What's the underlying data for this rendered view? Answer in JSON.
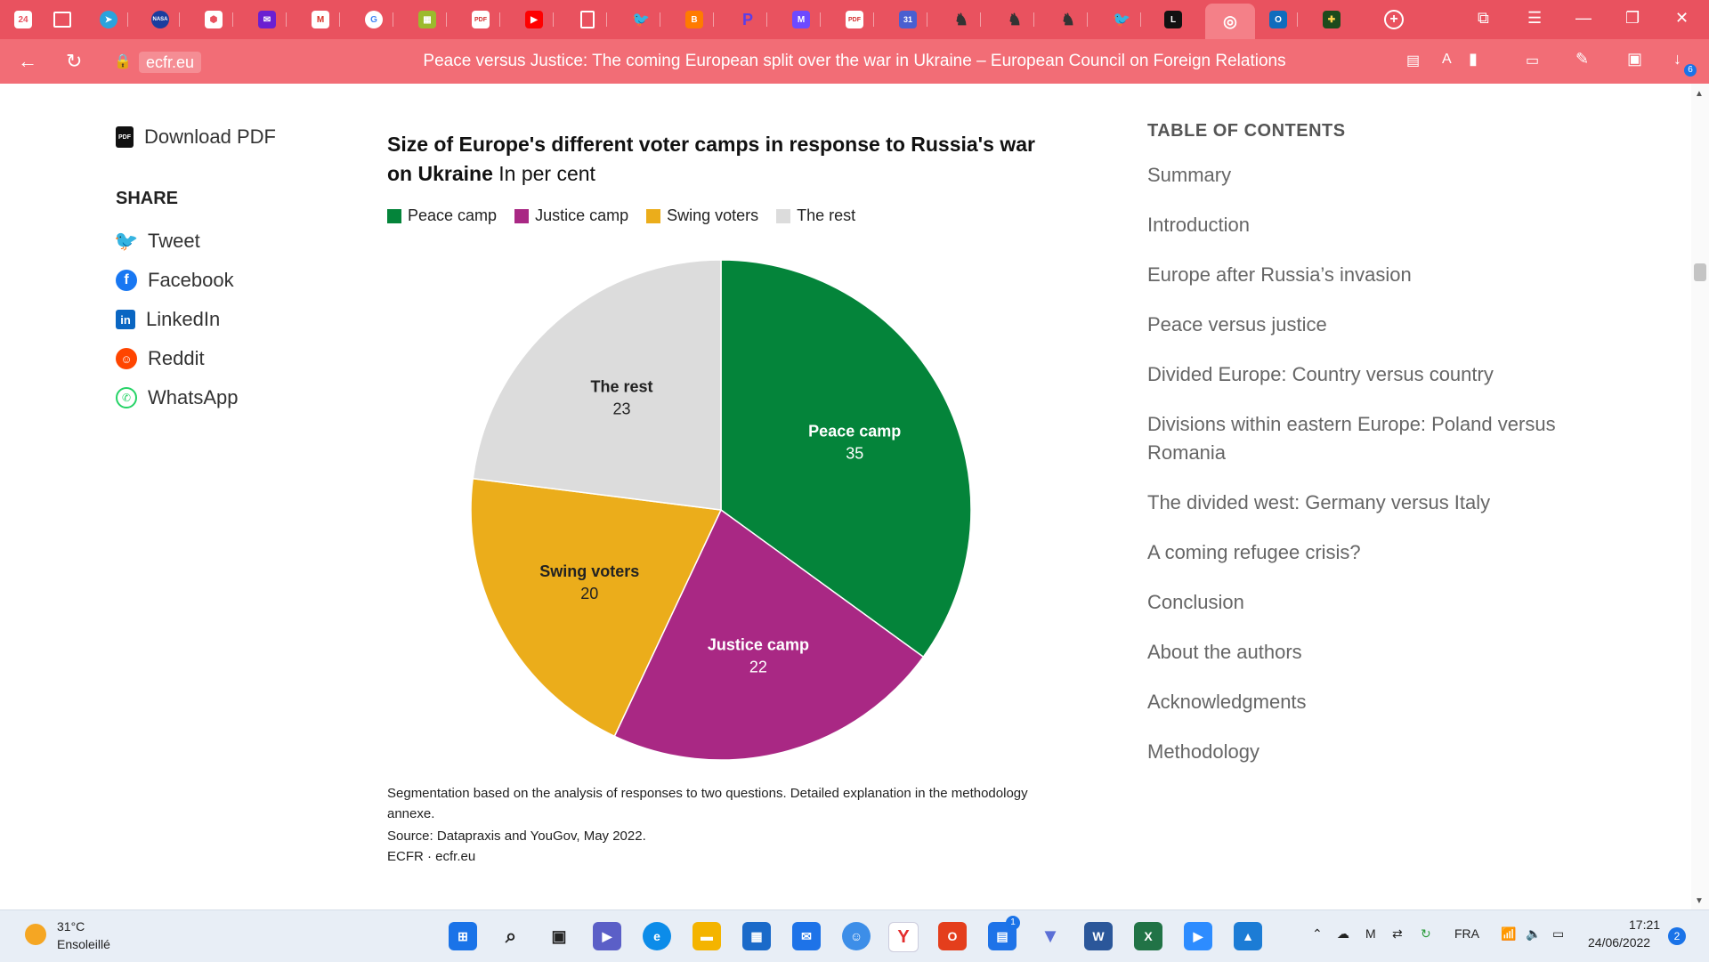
{
  "browser": {
    "tab_count_badge": "24",
    "url": "ecfr.eu",
    "page_title": "Peace versus Justice: The coming European split over the war in Ukraine – European Council on Foreign Relations",
    "download_badge": "6"
  },
  "sidebar": {
    "download_label": "Download PDF",
    "share_heading": "SHARE",
    "share_items": [
      {
        "label": "Tweet"
      },
      {
        "label": "Facebook"
      },
      {
        "label": "LinkedIn"
      },
      {
        "label": "Reddit"
      },
      {
        "label": "WhatsApp"
      }
    ]
  },
  "chart_data": {
    "type": "pie",
    "title": "Size of Europe's different voter camps in response to Russia's war on Ukraine",
    "subtitle": "In per cent",
    "categories": [
      "Peace camp",
      "Justice camp",
      "Swing voters",
      "The rest"
    ],
    "values": [
      35,
      22,
      20,
      23
    ],
    "colors": [
      "#04843a",
      "#a92884",
      "#ebad1b",
      "#dcdcdc"
    ],
    "label_colors": [
      "#ffffff",
      "#ffffff",
      "#222222",
      "#222222"
    ],
    "legend": "top",
    "note": "Segmentation based on the analysis of responses to two questions. Detailed explanation in the methodology annexe.",
    "source": "Source: Datapraxis and YouGov, May 2022.",
    "credit": "ECFR · ecfr.eu"
  },
  "toc": {
    "heading": "TABLE OF CONTENTS",
    "items": [
      "Summary",
      "Introduction",
      "Europe after Russia’s invasion",
      "Peace versus justice",
      "Divided Europe: Country versus country",
      "Divisions within eastern Europe: Poland versus Romania",
      "The divided west: Germany versus Italy",
      "A coming refugee crisis?",
      "Conclusion",
      "About the authors",
      "Acknowledgments",
      "Methodology"
    ]
  },
  "taskbar": {
    "weather_temp": "31°C",
    "weather_desc": "Ensoleillé",
    "language": "FRA",
    "time": "17:21",
    "date": "24/06/2022",
    "notification_count": "2",
    "teams_badge": "1"
  }
}
